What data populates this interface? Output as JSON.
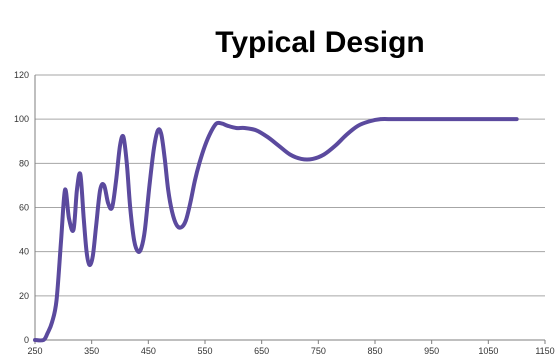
{
  "chart_data": {
    "type": "line",
    "title": "Typical Design",
    "xlabel": "",
    "ylabel": "",
    "xlim": [
      250,
      1150
    ],
    "ylim": [
      0,
      120
    ],
    "x_ticks": [
      250,
      350,
      450,
      550,
      650,
      750,
      850,
      950,
      1050,
      1150
    ],
    "y_ticks": [
      0,
      20,
      40,
      60,
      80,
      100,
      120
    ],
    "grid": {
      "horizontal": true,
      "vertical": false
    },
    "legend": "none",
    "series": [
      {
        "color": "#5b4a9e",
        "x": [
          250,
          265,
          272,
          280,
          288,
          296,
          303,
          310,
          318,
          324,
          330,
          336,
          341,
          346,
          352,
          358,
          365,
          372,
          379,
          386,
          393,
          400,
          406,
          412,
          418,
          425,
          432,
          438,
          444,
          452,
          460,
          467,
          473,
          479,
          485,
          492,
          500,
          508,
          516,
          524,
          532,
          540,
          550,
          560,
          570,
          580,
          590,
          605,
          620,
          640,
          660,
          680,
          700,
          720,
          740,
          760,
          780,
          800,
          820,
          840,
          860,
          880,
          900,
          950,
          1000,
          1050,
          1100
        ],
        "y": [
          0,
          0,
          3,
          8,
          18,
          45,
          68,
          55,
          50,
          68,
          75,
          55,
          40,
          34,
          38,
          52,
          68,
          70,
          62,
          60,
          72,
          88,
          92,
          80,
          60,
          45,
          40,
          42,
          50,
          70,
          87,
          95,
          93,
          82,
          68,
          58,
          52,
          51,
          54,
          62,
          72,
          80,
          88,
          94,
          98,
          98,
          97,
          96,
          96,
          95,
          92,
          88,
          84,
          82,
          82,
          84,
          88,
          93,
          97,
          99,
          100,
          100,
          100,
          100,
          100,
          100,
          100
        ]
      }
    ]
  }
}
